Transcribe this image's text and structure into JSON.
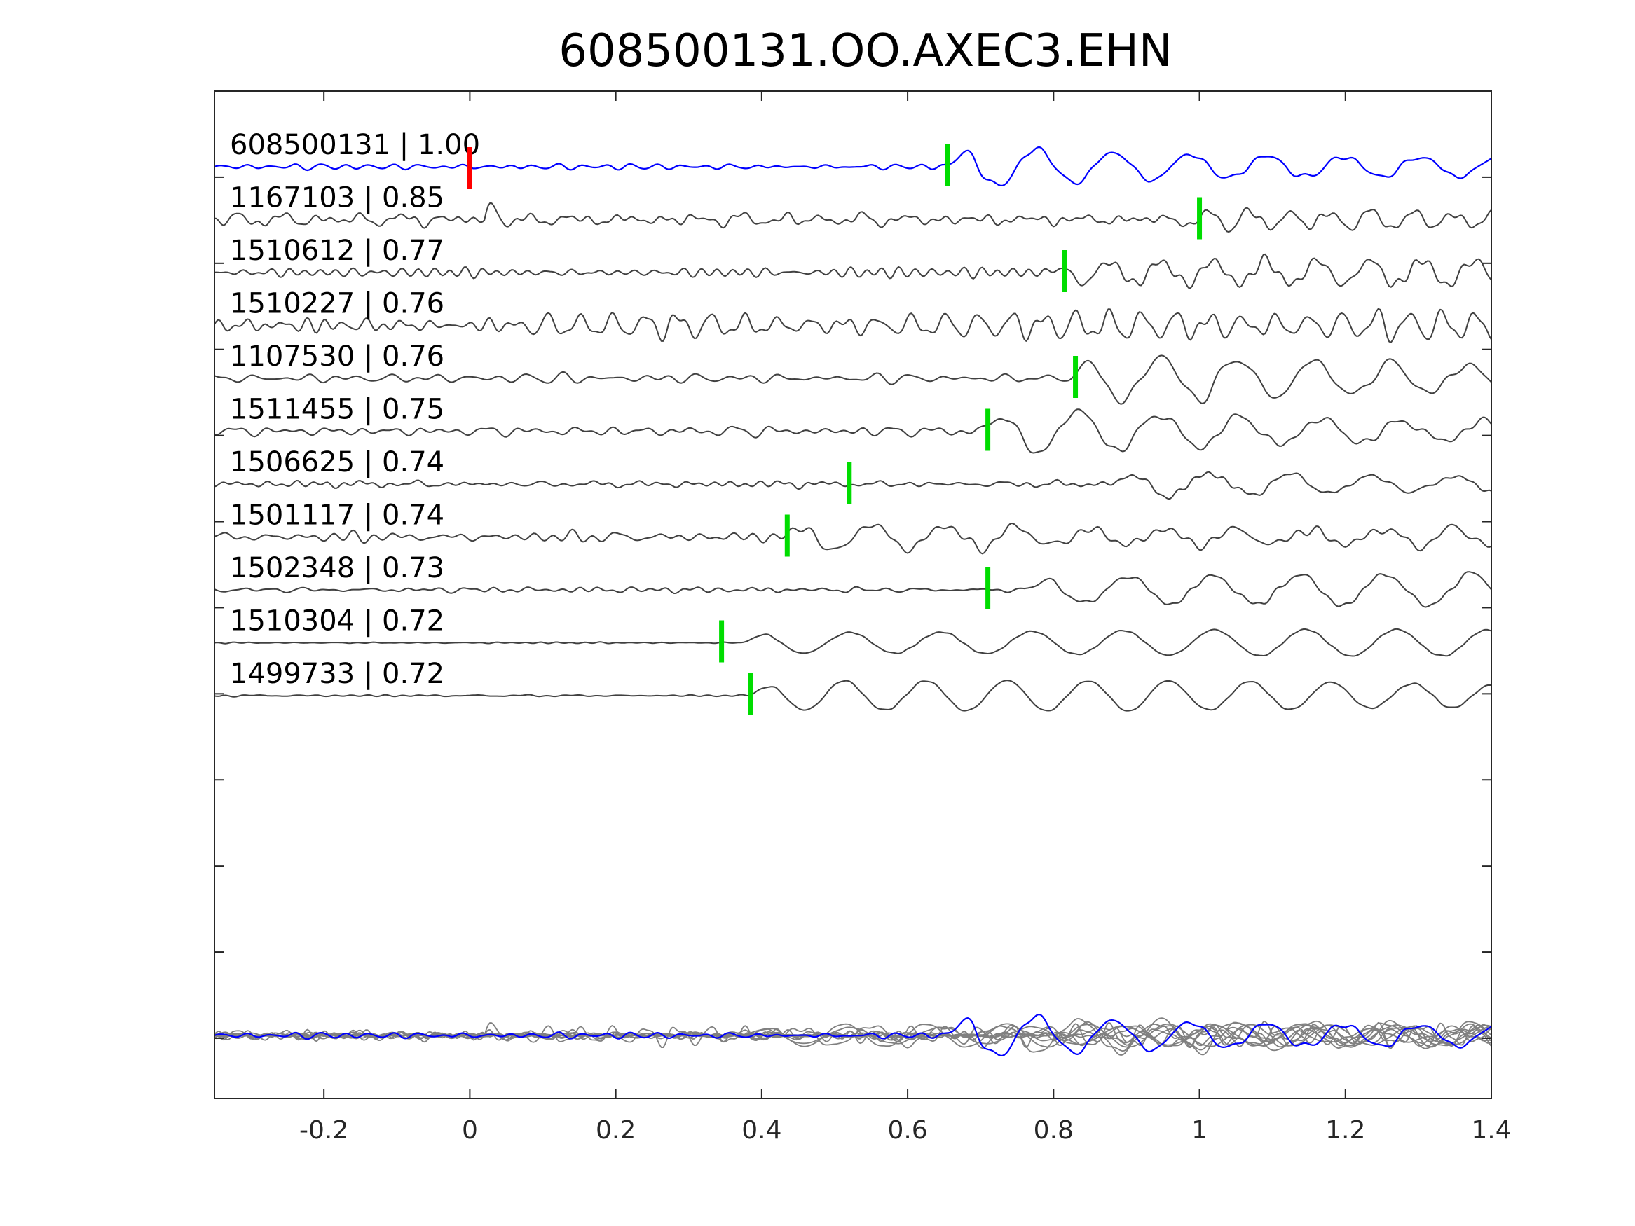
{
  "chart_data": {
    "type": "line",
    "title": "608500131.OO.AXEC3.EHN",
    "xlabel": "",
    "ylabel": "",
    "xlim": [
      -0.35,
      1.4
    ],
    "xticks": [
      -0.2,
      0,
      0.2,
      0.4,
      0.6,
      0.8,
      1,
      1.2,
      1.4
    ],
    "xtick_labels": [
      "-0.2",
      "0",
      "0.2",
      "0.4",
      "0.6",
      "0.8",
      "1",
      "1.2",
      "1.4"
    ],
    "grid": false,
    "colors": {
      "reference": "#0000ff",
      "template": "#404040",
      "stack": "#808080",
      "origin_marker": "#ff0000",
      "pick_marker": "#00dd00"
    },
    "origin_marker_time": 0.0,
    "series": [
      {
        "label": "608500131 | 1.00",
        "pick": 0.655,
        "reference": true,
        "wave": {
          "noise": 0.15,
          "arrival": 0.65,
          "amp": 1.2,
          "freq": 9.5
        }
      },
      {
        "label": "1167103 | 0.85",
        "pick": 1.0,
        "wave": {
          "noise": 0.3,
          "arrival": 0.95,
          "amp": 0.6,
          "freq": 18,
          "early": 0.02,
          "early_amp": 0.9
        }
      },
      {
        "label": "1510612 | 0.77",
        "pick": 0.815,
        "wave": {
          "noise": 0.3,
          "arrival": 0.79,
          "amp": 0.8,
          "freq": 14
        }
      },
      {
        "label": "1510227 | 0.76",
        "pick": null,
        "wave": {
          "noise": 0.3,
          "arrival": 0.05,
          "amp": 0.8,
          "freq": 22
        }
      },
      {
        "label": "1107530 | 0.76",
        "pick": 0.83,
        "wave": {
          "noise": 0.25,
          "arrival": 0.82,
          "amp": 1.0,
          "freq": 9.5
        }
      },
      {
        "label": "1511455 | 0.75",
        "pick": 0.71,
        "wave": {
          "noise": 0.25,
          "arrival": 0.7,
          "amp": 1.0,
          "freq": 9
        }
      },
      {
        "label": "1506625 | 0.74",
        "pick": 0.52,
        "wave": {
          "noise": 0.15,
          "arrival": 0.88,
          "amp": 0.9,
          "freq": 9
        }
      },
      {
        "label": "1501117 | 0.74",
        "pick": 0.435,
        "wave": {
          "noise": 0.25,
          "arrival": 0.43,
          "amp": 0.9,
          "freq": 10
        }
      },
      {
        "label": "1502348 | 0.73",
        "pick": 0.71,
        "wave": {
          "noise": 0.12,
          "arrival": 0.76,
          "amp": 1.1,
          "freq": 8.5
        }
      },
      {
        "label": "1510304 | 0.72",
        "pick": 0.345,
        "wave": {
          "noise": 0.03,
          "arrival": 0.37,
          "amp": 0.9,
          "freq": 8
        }
      },
      {
        "label": "1499733 | 0.72",
        "pick": 0.385,
        "wave": {
          "noise": 0.06,
          "arrival": 0.38,
          "amp": 0.9,
          "freq": 9
        }
      }
    ]
  }
}
